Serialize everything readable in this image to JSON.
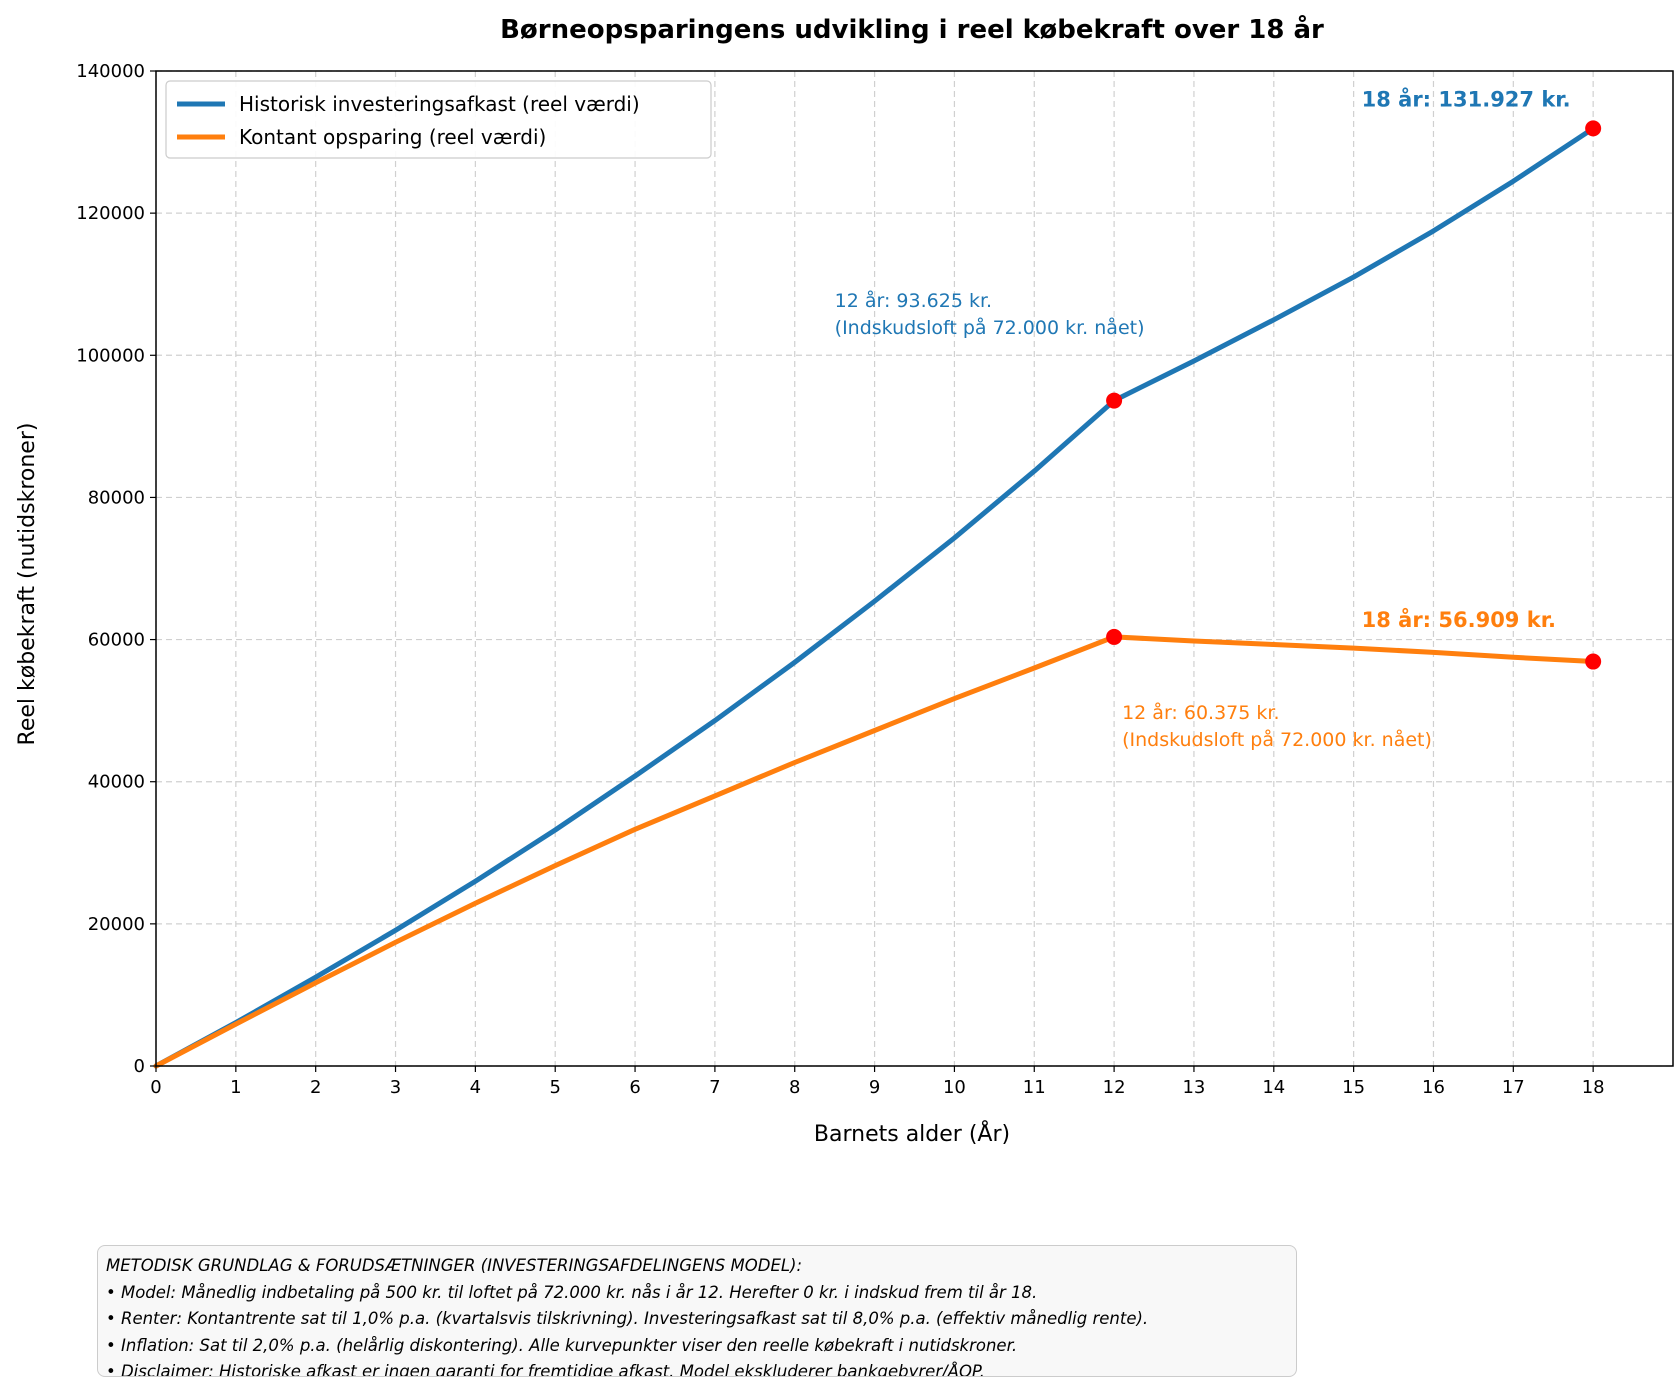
{
  "chart_data": {
    "type": "line",
    "title": "Børneopsparingens udvikling i reel købekraft over 18 år",
    "xlabel": "Barnets alder (År)",
    "ylabel": "Reel købekraft (nutidskroner)",
    "xlim": [
      0,
      19
    ],
    "ylim": [
      0,
      140000
    ],
    "xticks": [
      0,
      1,
      2,
      3,
      4,
      5,
      6,
      7,
      8,
      9,
      10,
      11,
      12,
      13,
      14,
      15,
      16,
      17,
      18
    ],
    "yticks": [
      0,
      20000,
      40000,
      60000,
      80000,
      100000,
      120000,
      140000
    ],
    "grid": true,
    "legend_position": "top-left",
    "x": [
      0,
      1,
      2,
      3,
      4,
      5,
      6,
      7,
      8,
      9,
      10,
      11,
      12,
      13,
      14,
      15,
      16,
      17,
      18
    ],
    "series": [
      {
        "name": "Historisk investeringsafkast (reel værdi)",
        "color": "#1f77b4",
        "values": [
          0,
          6100,
          12500,
          19100,
          26000,
          33200,
          40800,
          48600,
          56800,
          65400,
          74300,
          83700,
          93625,
          99200,
          105000,
          111000,
          117500,
          124500,
          131927
        ]
      },
      {
        "name": "Kontant opsparing (reel værdi)",
        "color": "#ff7f0e",
        "values": [
          0,
          5900,
          11700,
          17400,
          22900,
          28200,
          33300,
          38000,
          42700,
          47200,
          51700,
          56000,
          60375,
          59800,
          59300,
          58800,
          58200,
          57500,
          56909
        ]
      }
    ],
    "markers": [
      {
        "x": 12,
        "y": 93625,
        "color": "#ff0000"
      },
      {
        "x": 18,
        "y": 131927,
        "color": "#ff0000"
      },
      {
        "x": 12,
        "y": 60375,
        "color": "#ff0000"
      },
      {
        "x": 18,
        "y": 56909,
        "color": "#ff0000"
      }
    ],
    "annotations": [
      {
        "lines": [
          "12 år: 93.625 kr.",
          "(Indskudsloft på 72.000 kr. nået)"
        ],
        "x": 8.5,
        "y": 103000,
        "color": "#1f77b4",
        "bold": false
      },
      {
        "lines": [
          "18 år: 131.927 kr."
        ],
        "x": 15.1,
        "y": 135000,
        "color": "#1f77b4",
        "bold": true
      },
      {
        "lines": [
          "12 år: 60.375 kr.",
          "(Indskudsloft på 72.000 kr. nået)"
        ],
        "x": 12.1,
        "y": 45000,
        "color": "#ff7f0e",
        "bold": false
      },
      {
        "lines": [
          "18 år: 56.909 kr."
        ],
        "x": 15.1,
        "y": 61800,
        "color": "#ff7f0e",
        "bold": true
      }
    ]
  },
  "notes": {
    "heading": "METODISK GRUNDLAG & FORUDSÆTNINGER (INVESTERINGSAFDELINGENS MODEL):",
    "lines": [
      "• Model: Månedlig indbetaling på 500 kr. til loftet på 72.000 kr. nås i år 12. Herefter 0 kr. i indskud frem til år 18.",
      "• Renter: Kontantrente sat til 1,0% p.a. (kvartalsvis tilskrivning). Investeringsafkast sat til 8,0% p.a. (effektiv månedlig rente).",
      "• Inflation: Sat til 2,0% p.a. (helårlig diskontering). Alle kurvepunkter viser den reelle købekraft i nutidskroner.",
      "• Disclaimer: Historiske afkast er ingen garanti for fremtidige afkast. Model ekskluderer bankgebyrer/ÅOP."
    ]
  }
}
